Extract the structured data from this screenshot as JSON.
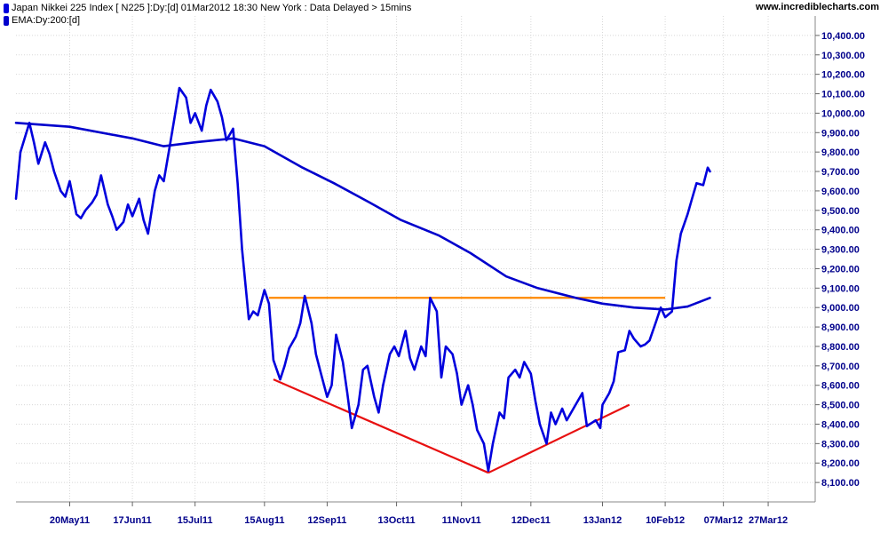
{
  "header": {
    "legend_main": "Japan Nikkei 225 Index [ N225 ]:Dy:[d]  01Mar2012 18:30 New York : Data Delayed > 15mins",
    "legend_ema": "EMA:Dy:200:[d]",
    "brand": "www.incrediblecharts.com"
  },
  "colors": {
    "price_line": "#0000dd",
    "ema_line": "#0000cc",
    "resistance_line": "#ff8800",
    "trend_lines": "#e81010",
    "tick_text": "#00008b",
    "grid": "#d8d8d8"
  },
  "chart_data": {
    "type": "line",
    "title": "Japan Nikkei 225 Index [ N225 ]:Dy:[d]  01Mar2012 18:30 New York : Data Delayed > 15mins",
    "xlabel": "",
    "ylabel": "",
    "ylim": [
      8000,
      10500
    ],
    "xlim": [
      "2011-04-26",
      "2012-04-17"
    ],
    "grid": true,
    "legend_position": "top-left",
    "y_ticks": [
      "8,100.00",
      "8,200.00",
      "8,300.00",
      "8,400.00",
      "8,500.00",
      "8,600.00",
      "8,700.00",
      "8,800.00",
      "8,900.00",
      "9,000.00",
      "9,100.00",
      "9,200.00",
      "9,300.00",
      "9,400.00",
      "9,500.00",
      "9,600.00",
      "9,700.00",
      "9,800.00",
      "9,900.00",
      "10,000.00",
      "10,100.00",
      "10,200.00",
      "10,300.00",
      "10,400.00"
    ],
    "y_tick_values": [
      8100,
      8200,
      8300,
      8400,
      8500,
      8600,
      8700,
      8800,
      8900,
      9000,
      9100,
      9200,
      9300,
      9400,
      9500,
      9600,
      9700,
      9800,
      9900,
      10000,
      10100,
      10200,
      10300,
      10400
    ],
    "x_ticks": [
      {
        "label": "20May11",
        "date": "2011-05-20"
      },
      {
        "label": "17Jun11",
        "date": "2011-06-17"
      },
      {
        "label": "15Jul11",
        "date": "2011-07-15"
      },
      {
        "label": "15Aug11",
        "date": "2011-08-15"
      },
      {
        "label": "12Sep11",
        "date": "2011-09-12"
      },
      {
        "label": "13Oct11",
        "date": "2011-10-13"
      },
      {
        "label": "11Nov11",
        "date": "2011-11-11"
      },
      {
        "label": "12Dec11",
        "date": "2011-12-12"
      },
      {
        "label": "13Jan12",
        "date": "2012-01-13"
      },
      {
        "label": "10Feb12",
        "date": "2012-02-10"
      },
      {
        "label": "07Mar12",
        "date": "2012-03-07"
      },
      {
        "label": "27Mar12",
        "date": "2012-03-27"
      }
    ],
    "series": [
      {
        "name": "Japan Nikkei 225 Index",
        "points": [
          [
            "2011-04-26",
            9560
          ],
          [
            "2011-04-28",
            9800
          ],
          [
            "2011-05-02",
            9950
          ],
          [
            "2011-05-04",
            9850
          ],
          [
            "2011-05-06",
            9740
          ],
          [
            "2011-05-09",
            9850
          ],
          [
            "2011-05-11",
            9790
          ],
          [
            "2011-05-13",
            9700
          ],
          [
            "2011-05-16",
            9600
          ],
          [
            "2011-05-18",
            9570
          ],
          [
            "2011-05-20",
            9650
          ],
          [
            "2011-05-23",
            9480
          ],
          [
            "2011-05-25",
            9460
          ],
          [
            "2011-05-27",
            9500
          ],
          [
            "2011-05-30",
            9540
          ],
          [
            "2011-06-01",
            9580
          ],
          [
            "2011-06-03",
            9680
          ],
          [
            "2011-06-06",
            9530
          ],
          [
            "2011-06-08",
            9470
          ],
          [
            "2011-06-10",
            9400
          ],
          [
            "2011-06-13",
            9440
          ],
          [
            "2011-06-15",
            9530
          ],
          [
            "2011-06-17",
            9470
          ],
          [
            "2011-06-20",
            9560
          ],
          [
            "2011-06-22",
            9450
          ],
          [
            "2011-06-24",
            9380
          ],
          [
            "2011-06-27",
            9600
          ],
          [
            "2011-06-29",
            9680
          ],
          [
            "2011-07-01",
            9650
          ],
          [
            "2011-07-04",
            9850
          ],
          [
            "2011-07-06",
            9990
          ],
          [
            "2011-07-08",
            10130
          ],
          [
            "2011-07-11",
            10080
          ],
          [
            "2011-07-13",
            9950
          ],
          [
            "2011-07-15",
            10000
          ],
          [
            "2011-07-18",
            9910
          ],
          [
            "2011-07-20",
            10040
          ],
          [
            "2011-07-22",
            10120
          ],
          [
            "2011-07-25",
            10060
          ],
          [
            "2011-07-27",
            9980
          ],
          [
            "2011-07-29",
            9860
          ],
          [
            "2011-08-01",
            9920
          ],
          [
            "2011-08-03",
            9640
          ],
          [
            "2011-08-05",
            9300
          ],
          [
            "2011-08-08",
            8940
          ],
          [
            "2011-08-10",
            8980
          ],
          [
            "2011-08-12",
            8960
          ],
          [
            "2011-08-15",
            9090
          ],
          [
            "2011-08-17",
            9020
          ],
          [
            "2011-08-19",
            8730
          ],
          [
            "2011-08-22",
            8630
          ],
          [
            "2011-08-24",
            8700
          ],
          [
            "2011-08-26",
            8790
          ],
          [
            "2011-08-29",
            8850
          ],
          [
            "2011-08-31",
            8920
          ],
          [
            "2011-09-02",
            9060
          ],
          [
            "2011-09-05",
            8920
          ],
          [
            "2011-09-07",
            8760
          ],
          [
            "2011-09-09",
            8670
          ],
          [
            "2011-09-12",
            8540
          ],
          [
            "2011-09-14",
            8600
          ],
          [
            "2011-09-16",
            8860
          ],
          [
            "2011-09-19",
            8720
          ],
          [
            "2011-09-21",
            8560
          ],
          [
            "2011-09-23",
            8380
          ],
          [
            "2011-09-26",
            8500
          ],
          [
            "2011-09-28",
            8680
          ],
          [
            "2011-09-30",
            8700
          ],
          [
            "2011-10-03",
            8540
          ],
          [
            "2011-10-05",
            8460
          ],
          [
            "2011-10-07",
            8600
          ],
          [
            "2011-10-10",
            8760
          ],
          [
            "2011-10-12",
            8800
          ],
          [
            "2011-10-14",
            8750
          ],
          [
            "2011-10-17",
            8880
          ],
          [
            "2011-10-19",
            8740
          ],
          [
            "2011-10-21",
            8680
          ],
          [
            "2011-10-24",
            8800
          ],
          [
            "2011-10-26",
            8750
          ],
          [
            "2011-10-28",
            9050
          ],
          [
            "2011-10-31",
            8980
          ],
          [
            "2011-11-02",
            8640
          ],
          [
            "2011-11-04",
            8800
          ],
          [
            "2011-11-07",
            8760
          ],
          [
            "2011-11-09",
            8660
          ],
          [
            "2011-11-11",
            8500
          ],
          [
            "2011-11-14",
            8600
          ],
          [
            "2011-11-16",
            8500
          ],
          [
            "2011-11-18",
            8370
          ],
          [
            "2011-11-21",
            8300
          ],
          [
            "2011-11-23",
            8160
          ],
          [
            "2011-11-25",
            8300
          ],
          [
            "2011-11-28",
            8460
          ],
          [
            "2011-11-30",
            8430
          ],
          [
            "2011-12-02",
            8640
          ],
          [
            "2011-12-05",
            8680
          ],
          [
            "2011-12-07",
            8640
          ],
          [
            "2011-12-09",
            8720
          ],
          [
            "2011-12-12",
            8660
          ],
          [
            "2011-12-14",
            8520
          ],
          [
            "2011-12-16",
            8400
          ],
          [
            "2011-12-19",
            8300
          ],
          [
            "2011-12-21",
            8460
          ],
          [
            "2011-12-23",
            8400
          ],
          [
            "2011-12-26",
            8480
          ],
          [
            "2011-12-28",
            8420
          ],
          [
            "2011-12-30",
            8460
          ],
          [
            "2012-01-04",
            8560
          ],
          [
            "2012-01-06",
            8390
          ],
          [
            "2012-01-10",
            8420
          ],
          [
            "2012-01-12",
            8380
          ],
          [
            "2012-01-13",
            8500
          ],
          [
            "2012-01-16",
            8560
          ],
          [
            "2012-01-18",
            8620
          ],
          [
            "2012-01-20",
            8770
          ],
          [
            "2012-01-23",
            8780
          ],
          [
            "2012-01-25",
            8880
          ],
          [
            "2012-01-27",
            8840
          ],
          [
            "2012-01-30",
            8800
          ],
          [
            "2012-02-01",
            8810
          ],
          [
            "2012-02-03",
            8830
          ],
          [
            "2012-02-06",
            8930
          ],
          [
            "2012-02-08",
            9000
          ],
          [
            "2012-02-10",
            8950
          ],
          [
            "2012-02-13",
            8980
          ],
          [
            "2012-02-15",
            9240
          ],
          [
            "2012-02-17",
            9380
          ],
          [
            "2012-02-20",
            9480
          ],
          [
            "2012-02-22",
            9560
          ],
          [
            "2012-02-24",
            9640
          ],
          [
            "2012-02-27",
            9630
          ],
          [
            "2012-02-29",
            9720
          ],
          [
            "2012-03-01",
            9700
          ]
        ]
      },
      {
        "name": "EMA:Dy:200:[d]",
        "points": [
          [
            "2011-04-26",
            9950
          ],
          [
            "2011-05-20",
            9930
          ],
          [
            "2011-06-17",
            9870
          ],
          [
            "2011-07-01",
            9830
          ],
          [
            "2011-07-15",
            9850
          ],
          [
            "2011-08-01",
            9870
          ],
          [
            "2011-08-15",
            9830
          ],
          [
            "2011-09-01",
            9720
          ],
          [
            "2011-09-15",
            9640
          ],
          [
            "2011-10-01",
            9540
          ],
          [
            "2011-10-15",
            9450
          ],
          [
            "2011-11-01",
            9370
          ],
          [
            "2011-11-15",
            9280
          ],
          [
            "2011-12-01",
            9160
          ],
          [
            "2011-12-15",
            9100
          ],
          [
            "2012-01-01",
            9050
          ],
          [
            "2012-01-13",
            9020
          ],
          [
            "2012-01-27",
            9000
          ],
          [
            "2012-02-10",
            8990
          ],
          [
            "2012-02-20",
            9005
          ],
          [
            "2012-03-01",
            9050
          ]
        ]
      }
    ],
    "annotations": [
      {
        "kind": "horizontal-line",
        "color": "orange",
        "from": [
          "2011-08-17",
          9050
        ],
        "to": [
          "2012-02-10",
          9050
        ]
      },
      {
        "kind": "trend-line",
        "color": "red",
        "from": [
          "2011-08-19",
          8630
        ],
        "to": [
          "2011-11-23",
          8150
        ]
      },
      {
        "kind": "trend-line",
        "color": "red",
        "from": [
          "2011-11-23",
          8150
        ],
        "to": [
          "2012-01-25",
          8500
        ]
      }
    ]
  }
}
